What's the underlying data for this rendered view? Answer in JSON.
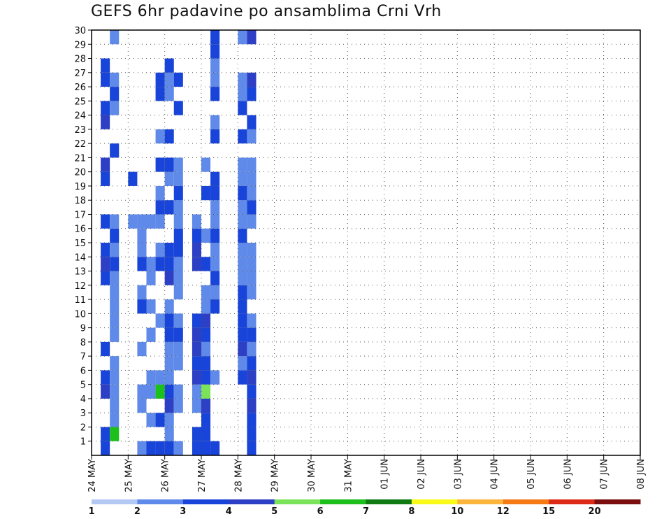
{
  "chart_data": {
    "type": "heatmap",
    "title": "GEFS 6hr padavine po ansamblima Crni Vrh",
    "xlabel": "",
    "ylabel": "",
    "x_tick_labels": [
      "24 MAY",
      "25 MAY",
      "26 MAY",
      "27 MAY",
      "28 MAY",
      "29 MAY",
      "30 MAY",
      "31 MAY",
      "01 JUN",
      "02 JUN",
      "03 JUN",
      "04 JUN",
      "05 JUN",
      "06 JUN",
      "07 JUN",
      "08 JUN"
    ],
    "y_tick_labels": [
      1,
      2,
      3,
      4,
      5,
      6,
      7,
      8,
      9,
      10,
      11,
      12,
      13,
      14,
      15,
      16,
      17,
      18,
      19,
      20,
      21,
      22,
      23,
      24,
      25,
      26,
      27,
      28,
      29,
      30
    ],
    "xlim": [
      0,
      60
    ],
    "ylim": [
      0,
      30
    ],
    "steps_per_day": 4,
    "grid": true,
    "colorbar": {
      "placement": "bottom",
      "levels": [
        "1",
        "2",
        "3",
        "4",
        "5",
        "6",
        "7",
        "8",
        "10",
        "12",
        "15",
        "20"
      ],
      "colors": [
        "#b4c8f4",
        "#5f8ae9",
        "#1844d9",
        "#2d3fc4",
        "#7ae35a",
        "#1cbf1c",
        "#0f7a12",
        "#fafa1a",
        "#fbb43c",
        "#f57a14",
        "#dd2a16",
        "#7a0d0d"
      ]
    },
    "cells": [
      [
        1,
        0,
        2
      ],
      [
        1,
        1,
        2
      ],
      [
        1,
        4,
        3
      ],
      [
        1,
        5,
        2
      ],
      [
        1,
        7,
        2
      ],
      [
        1,
        12,
        2
      ],
      [
        1,
        13,
        3
      ],
      [
        1,
        14,
        2
      ],
      [
        1,
        16,
        2
      ],
      [
        1,
        19,
        2
      ],
      [
        1,
        20,
        3
      ],
      [
        1,
        23,
        3
      ],
      [
        1,
        24,
        2
      ],
      [
        1,
        26,
        2
      ],
      [
        1,
        27,
        2
      ],
      [
        2,
        1,
        5
      ],
      [
        2,
        2,
        1
      ],
      [
        2,
        3,
        1
      ],
      [
        2,
        4,
        1
      ],
      [
        2,
        5,
        1
      ],
      [
        2,
        6,
        1
      ],
      [
        2,
        8,
        1
      ],
      [
        2,
        9,
        1
      ],
      [
        2,
        10,
        1
      ],
      [
        2,
        11,
        1
      ],
      [
        2,
        12,
        1
      ],
      [
        2,
        13,
        2
      ],
      [
        2,
        14,
        1
      ],
      [
        2,
        15,
        2
      ],
      [
        2,
        16,
        1
      ],
      [
        2,
        21,
        2
      ],
      [
        2,
        24,
        1
      ],
      [
        2,
        25,
        2
      ],
      [
        2,
        26,
        1
      ],
      [
        2,
        29,
        1
      ],
      [
        4,
        16,
        1
      ],
      [
        4,
        19,
        2
      ],
      [
        5,
        0,
        1
      ],
      [
        5,
        3,
        1
      ],
      [
        5,
        4,
        1
      ],
      [
        5,
        7,
        1
      ],
      [
        5,
        10,
        2
      ],
      [
        5,
        11,
        1
      ],
      [
        5,
        13,
        2
      ],
      [
        5,
        14,
        1
      ],
      [
        5,
        15,
        1
      ],
      [
        5,
        16,
        1
      ],
      [
        6,
        0,
        2
      ],
      [
        6,
        2,
        1
      ],
      [
        6,
        4,
        1
      ],
      [
        6,
        5,
        1
      ],
      [
        6,
        8,
        1
      ],
      [
        6,
        10,
        1
      ],
      [
        6,
        12,
        1
      ],
      [
        6,
        13,
        1
      ],
      [
        6,
        16,
        1
      ],
      [
        7,
        0,
        2
      ],
      [
        7,
        2,
        2
      ],
      [
        7,
        4,
        5
      ],
      [
        7,
        5,
        1
      ],
      [
        7,
        9,
        1
      ],
      [
        7,
        13,
        2
      ],
      [
        7,
        14,
        1
      ],
      [
        7,
        16,
        1
      ],
      [
        7,
        17,
        2
      ],
      [
        7,
        18,
        1
      ],
      [
        7,
        20,
        2
      ],
      [
        7,
        22,
        1
      ],
      [
        7,
        25,
        2
      ],
      [
        7,
        26,
        2
      ],
      [
        8,
        0,
        2
      ],
      [
        8,
        1,
        1
      ],
      [
        8,
        2,
        1
      ],
      [
        8,
        3,
        3
      ],
      [
        8,
        4,
        2
      ],
      [
        8,
        5,
        1
      ],
      [
        8,
        6,
        1
      ],
      [
        8,
        7,
        1
      ],
      [
        8,
        8,
        2
      ],
      [
        8,
        9,
        2
      ],
      [
        8,
        10,
        1
      ],
      [
        8,
        12,
        3
      ],
      [
        8,
        13,
        2
      ],
      [
        8,
        14,
        2
      ],
      [
        8,
        17,
        2
      ],
      [
        8,
        19,
        1
      ],
      [
        8,
        20,
        2
      ],
      [
        8,
        22,
        2
      ],
      [
        8,
        25,
        1
      ],
      [
        8,
        26,
        1
      ],
      [
        8,
        27,
        2
      ],
      [
        9,
        0,
        1
      ],
      [
        9,
        3,
        1
      ],
      [
        9,
        4,
        1
      ],
      [
        9,
        6,
        1
      ],
      [
        9,
        7,
        1
      ],
      [
        9,
        8,
        2
      ],
      [
        9,
        9,
        1
      ],
      [
        9,
        11,
        1
      ],
      [
        9,
        12,
        1
      ],
      [
        9,
        13,
        1
      ],
      [
        9,
        14,
        2
      ],
      [
        9,
        15,
        2
      ],
      [
        9,
        16,
        1
      ],
      [
        9,
        17,
        1
      ],
      [
        9,
        18,
        2
      ],
      [
        9,
        19,
        1
      ],
      [
        9,
        20,
        1
      ],
      [
        9,
        24,
        2
      ],
      [
        9,
        26,
        2
      ],
      [
        11,
        0,
        2
      ],
      [
        11,
        1,
        2
      ],
      [
        11,
        3,
        1
      ],
      [
        11,
        4,
        1
      ],
      [
        11,
        5,
        3
      ],
      [
        11,
        6,
        2
      ],
      [
        11,
        7,
        3
      ],
      [
        11,
        8,
        3
      ],
      [
        11,
        9,
        2
      ],
      [
        11,
        13,
        3
      ],
      [
        11,
        14,
        3
      ],
      [
        11,
        15,
        2
      ],
      [
        11,
        16,
        1
      ],
      [
        12,
        0,
        2
      ],
      [
        12,
        1,
        2
      ],
      [
        12,
        2,
        2
      ],
      [
        12,
        3,
        3
      ],
      [
        12,
        4,
        4
      ],
      [
        12,
        5,
        2
      ],
      [
        12,
        6,
        2
      ],
      [
        12,
        7,
        1
      ],
      [
        12,
        8,
        2
      ],
      [
        12,
        9,
        3
      ],
      [
        12,
        10,
        1
      ],
      [
        12,
        11,
        1
      ],
      [
        12,
        13,
        2
      ],
      [
        12,
        15,
        1
      ],
      [
        12,
        18,
        2
      ],
      [
        12,
        20,
        1
      ],
      [
        13,
        0,
        2
      ],
      [
        13,
        5,
        1
      ],
      [
        13,
        10,
        2
      ],
      [
        13,
        11,
        1
      ],
      [
        13,
        12,
        2
      ],
      [
        13,
        13,
        1
      ],
      [
        13,
        14,
        1
      ],
      [
        13,
        15,
        2
      ],
      [
        13,
        16,
        1
      ],
      [
        13,
        17,
        1
      ],
      [
        13,
        18,
        2
      ],
      [
        13,
        19,
        2
      ],
      [
        13,
        22,
        2
      ],
      [
        13,
        23,
        1
      ],
      [
        13,
        25,
        2
      ],
      [
        13,
        26,
        1
      ],
      [
        13,
        27,
        1
      ],
      [
        13,
        28,
        2
      ],
      [
        13,
        29,
        2
      ],
      [
        16,
        5,
        2
      ],
      [
        16,
        6,
        1
      ],
      [
        16,
        7,
        3
      ],
      [
        16,
        8,
        2
      ],
      [
        16,
        9,
        2
      ],
      [
        16,
        10,
        2
      ],
      [
        16,
        11,
        2
      ],
      [
        16,
        12,
        1
      ],
      [
        16,
        13,
        1
      ],
      [
        16,
        14,
        1
      ],
      [
        16,
        15,
        2
      ],
      [
        16,
        16,
        1
      ],
      [
        16,
        17,
        1
      ],
      [
        16,
        18,
        2
      ],
      [
        16,
        19,
        1
      ],
      [
        16,
        20,
        1
      ],
      [
        16,
        22,
        2
      ],
      [
        16,
        24,
        2
      ],
      [
        16,
        25,
        1
      ],
      [
        16,
        26,
        1
      ],
      [
        16,
        29,
        1
      ],
      [
        17,
        0,
        2
      ],
      [
        17,
        1,
        2
      ],
      [
        17,
        2,
        2
      ],
      [
        17,
        3,
        3
      ],
      [
        17,
        4,
        2
      ],
      [
        17,
        5,
        3
      ],
      [
        17,
        6,
        2
      ],
      [
        17,
        7,
        1
      ],
      [
        17,
        8,
        2
      ],
      [
        17,
        9,
        1
      ],
      [
        17,
        11,
        1
      ],
      [
        17,
        12,
        1
      ],
      [
        17,
        13,
        1
      ],
      [
        17,
        14,
        1
      ],
      [
        17,
        16,
        1
      ],
      [
        17,
        17,
        2
      ],
      [
        17,
        18,
        1
      ],
      [
        17,
        19,
        1
      ],
      [
        17,
        20,
        1
      ],
      [
        17,
        22,
        1
      ],
      [
        17,
        23,
        2
      ],
      [
        17,
        25,
        2
      ],
      [
        17,
        26,
        3
      ],
      [
        17,
        29,
        3
      ]
    ]
  }
}
